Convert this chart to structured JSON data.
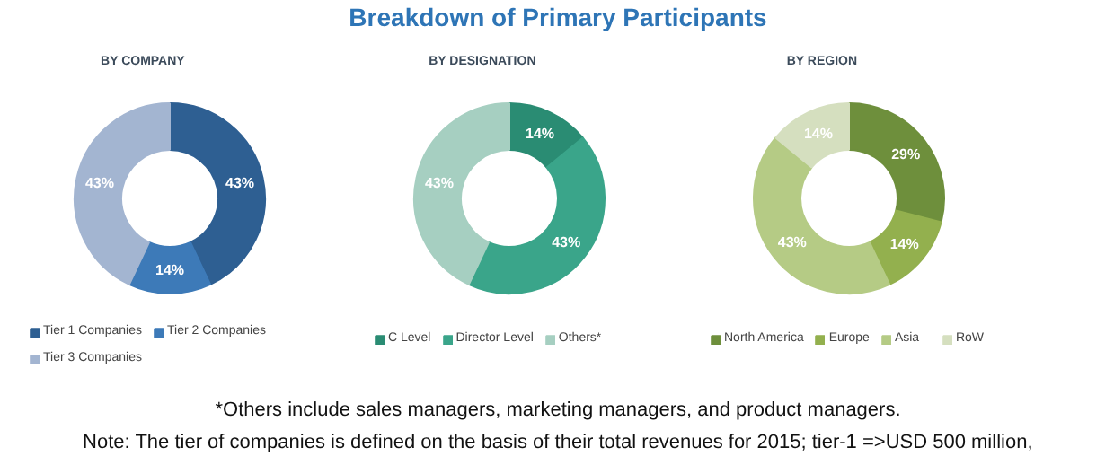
{
  "chart_data": [
    {
      "type": "other",
      "title": "Breakdown of Primary Participants",
      "annotations": [
        "*Others include sales managers, marketing managers, and product managers.",
        "Note: The tier of companies is defined on the basis of their total revenues for 2015; tier-1 =>USD 500 million,"
      ]
    },
    {
      "type": "donut",
      "title": "BY COMPANY",
      "categories": [
        "Tier 1 Companies",
        "Tier 2 Companies",
        "Tier 3 Companies"
      ],
      "values": [
        43,
        14,
        43
      ],
      "colors": [
        "#2e5f92",
        "#3d7ab8",
        "#a3b5d1"
      ],
      "value_labels": [
        "43%",
        "14%",
        "43%"
      ],
      "legend": "bottom"
    },
    {
      "type": "donut",
      "title": "BY DESIGNATION",
      "categories": [
        "C Level",
        "Director Level",
        "Others*"
      ],
      "values": [
        14,
        43,
        43
      ],
      "colors": [
        "#2a8c73",
        "#3aa58a",
        "#a6cfc1"
      ],
      "value_labels": [
        "14%",
        "43%",
        "43%"
      ],
      "legend": "bottom"
    },
    {
      "type": "donut",
      "title": "BY REGION",
      "categories": [
        "North America",
        "Europe",
        "Asia",
        "RoW"
      ],
      "values": [
        29,
        14,
        43,
        14
      ],
      "colors": [
        "#6e8f3c",
        "#93b04e",
        "#b5cb85",
        "#d5dfbf"
      ],
      "value_labels": [
        "29%",
        "14%",
        "43%",
        "14%"
      ],
      "legend": "bottom"
    }
  ]
}
